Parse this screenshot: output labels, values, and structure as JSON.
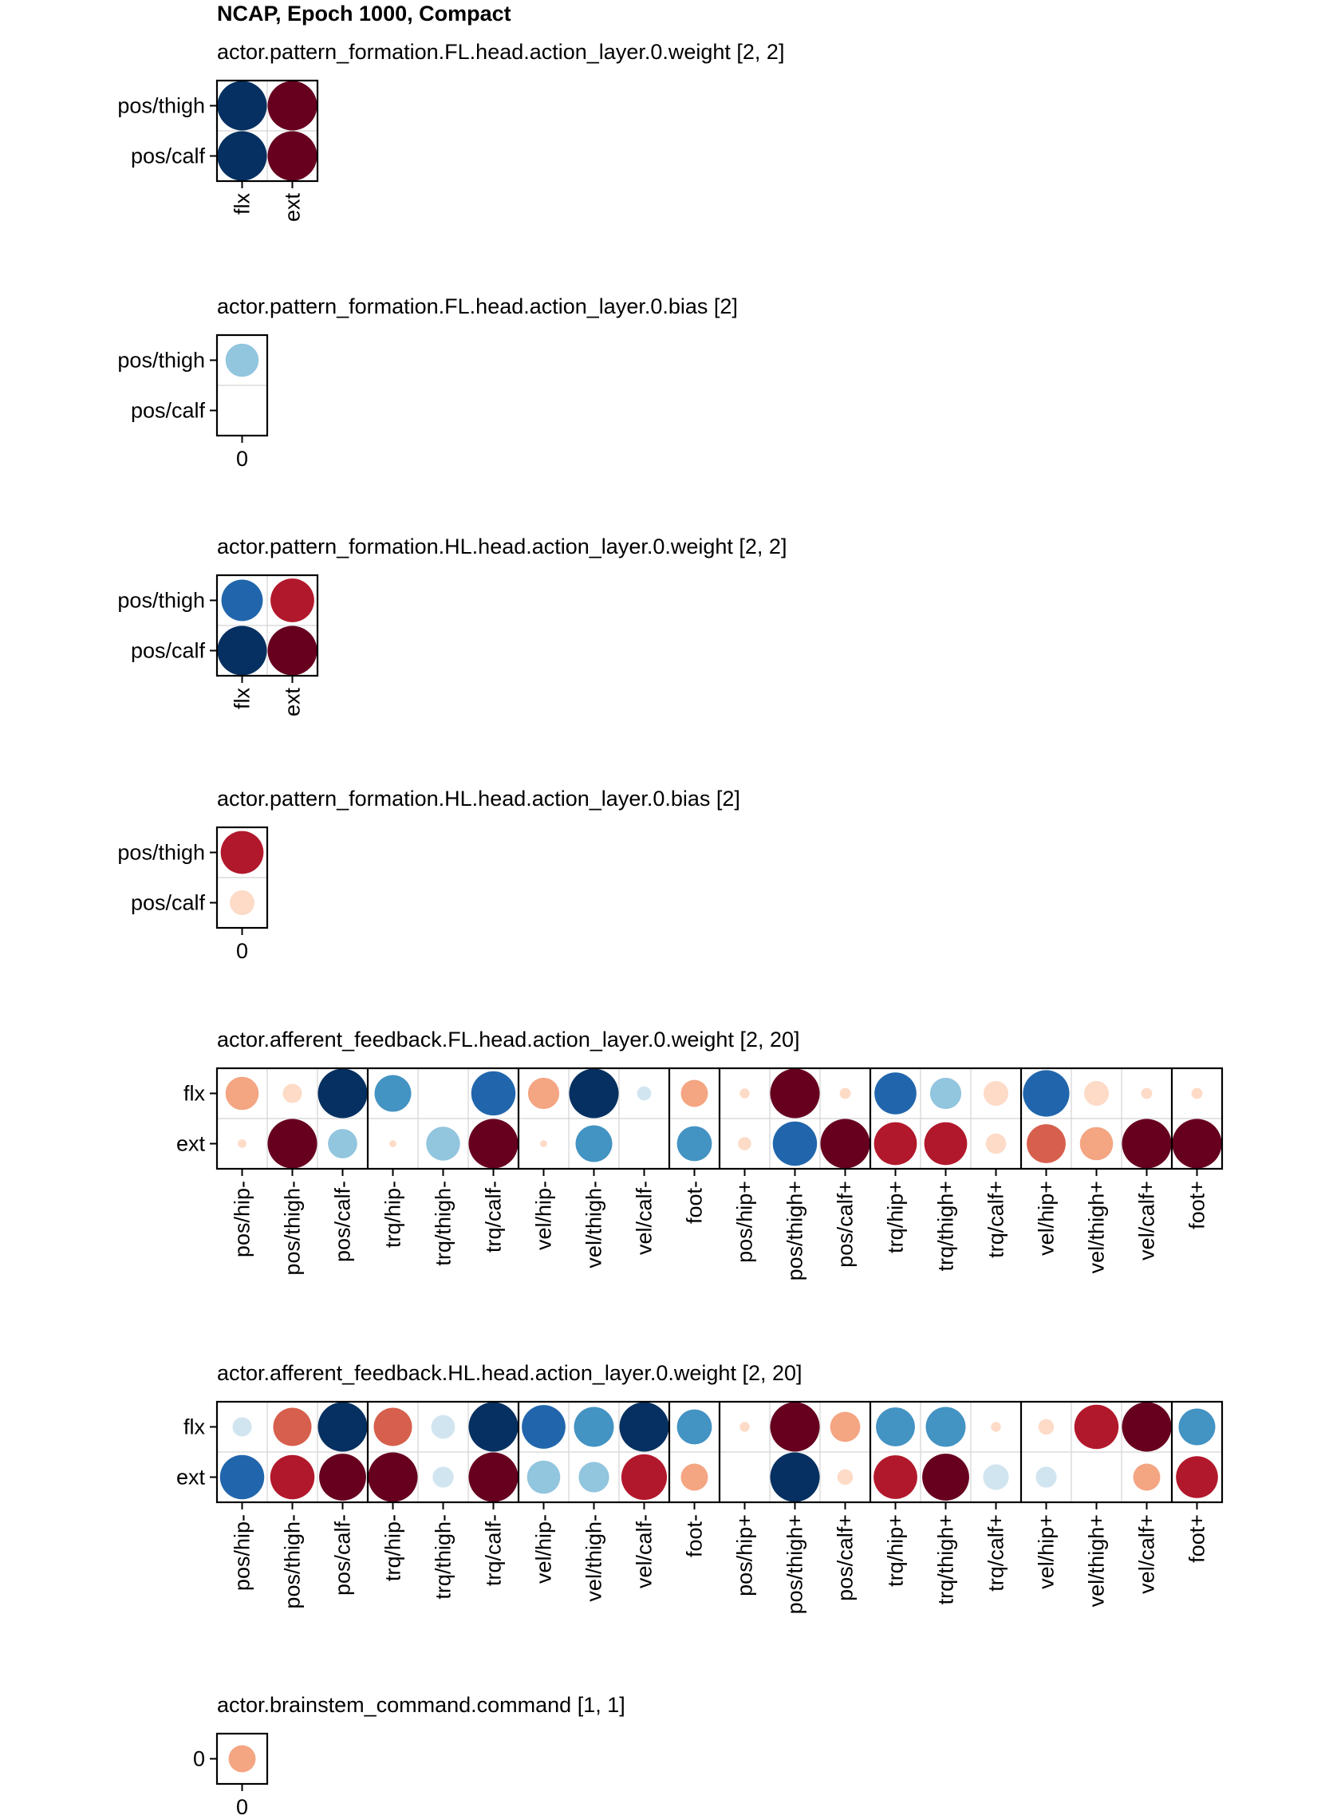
{
  "figure": {
    "title": "NCAP, Epoch 1000, Compact"
  },
  "palette": {
    "neg": [
      "#f7f7f7",
      "#d1e5f0",
      "#92c5de",
      "#4393c3",
      "#2166ac",
      "#053061"
    ],
    "pos": [
      "#f7f7f7",
      "#fddbc7",
      "#f4a582",
      "#d6604d",
      "#b2182b",
      "#67001f"
    ]
  },
  "chart_data": [
    {
      "type": "heatmap",
      "title": "actor.pattern_formation.FL.head.action_layer.0.weight [2, 2]",
      "rows": [
        "pos/thigh",
        "pos/calf"
      ],
      "cols": [
        "flx",
        "ext"
      ],
      "groups": [],
      "values": [
        [
          -1.0,
          1.0
        ],
        [
          -1.0,
          1.0
        ]
      ]
    },
    {
      "type": "heatmap",
      "title": "actor.pattern_formation.FL.head.action_layer.0.bias [2]",
      "rows": [
        "pos/thigh",
        "pos/calf"
      ],
      "cols": [
        "0"
      ],
      "groups": [],
      "values": [
        [
          -0.45
        ],
        [
          0.0
        ]
      ]
    },
    {
      "type": "heatmap",
      "title": "actor.pattern_formation.HL.head.action_layer.0.weight [2, 2]",
      "rows": [
        "pos/thigh",
        "pos/calf"
      ],
      "cols": [
        "flx",
        "ext"
      ],
      "groups": [],
      "values": [
        [
          -0.7,
          0.78
        ],
        [
          -1.0,
          1.0
        ]
      ]
    },
    {
      "type": "heatmap",
      "title": "actor.pattern_formation.HL.head.action_layer.0.bias [2]",
      "rows": [
        "pos/thigh",
        "pos/calf"
      ],
      "cols": [
        "0"
      ],
      "groups": [],
      "values": [
        [
          0.75
        ],
        [
          0.25
        ]
      ]
    },
    {
      "type": "heatmap",
      "title": "actor.afferent_feedback.FL.head.action_layer.0.weight [2, 20]",
      "rows": [
        "flx",
        "ext"
      ],
      "cols": [
        "pos/hip-",
        "pos/thigh-",
        "pos/calf-",
        "trq/hip-",
        "trq/thigh-",
        "trq/calf-",
        "vel/hip-",
        "vel/thigh-",
        "vel/calf-",
        "foot-",
        "pos/hip+",
        "pos/thigh+",
        "pos/calf+",
        "trq/hip+",
        "trq/thigh+",
        "trq/calf+",
        "vel/hip+",
        "vel/thigh+",
        "vel/calf+",
        "foot+"
      ],
      "groups": [
        3,
        3,
        3,
        1,
        3,
        3,
        3,
        1
      ],
      "values": [
        [
          0.45,
          0.15,
          -1.0,
          -0.55,
          0.0,
          -0.8,
          0.4,
          -1.0,
          -0.08,
          0.3,
          0.04,
          1.0,
          0.05,
          -0.72,
          -0.4,
          0.25,
          -0.88,
          0.25,
          0.05,
          0.05
        ],
        [
          0.03,
          1.0,
          -0.35,
          0.02,
          -0.47,
          1.0,
          0.02,
          -0.55,
          0.0,
          -0.5,
          0.07,
          -0.8,
          1.0,
          0.75,
          0.75,
          0.17,
          0.62,
          0.45,
          1.0,
          1.0
        ]
      ]
    },
    {
      "type": "heatmap",
      "title": "actor.afferent_feedback.HL.head.action_layer.0.weight [2, 20]",
      "rows": [
        "flx",
        "ext"
      ],
      "cols": [
        "pos/hip-",
        "pos/thigh-",
        "pos/calf-",
        "trq/hip-",
        "trq/thigh-",
        "trq/calf-",
        "vel/hip-",
        "vel/thigh-",
        "vel/calf-",
        "foot-",
        "pos/hip+",
        "pos/thigh+",
        "pos/calf+",
        "trq/hip+",
        "trq/thigh+",
        "trq/calf+",
        "vel/hip+",
        "vel/thigh+",
        "vel/calf+",
        "foot+"
      ],
      "groups": [
        3,
        3,
        3,
        1,
        3,
        3,
        3,
        1
      ],
      "values": [
        [
          -0.15,
          0.6,
          -1.0,
          0.6,
          -0.23,
          -1.0,
          -0.78,
          -0.65,
          -1.0,
          -0.5,
          0.04,
          1.0,
          0.37,
          -0.62,
          -0.65,
          0.04,
          0.1,
          0.8,
          1.0,
          -0.55
        ],
        [
          -0.8,
          0.8,
          0.9,
          1.0,
          -0.18,
          1.0,
          -0.45,
          -0.38,
          0.85,
          0.3,
          0.0,
          -1.0,
          0.1,
          0.78,
          0.9,
          -0.27,
          -0.18,
          0.0,
          0.3,
          0.72
        ]
      ]
    },
    {
      "type": "heatmap",
      "title": "actor.brainstem_command.command [1, 1]",
      "rows": [
        "0"
      ],
      "cols": [
        "0"
      ],
      "groups": [],
      "values": [
        [
          0.3
        ]
      ]
    }
  ]
}
